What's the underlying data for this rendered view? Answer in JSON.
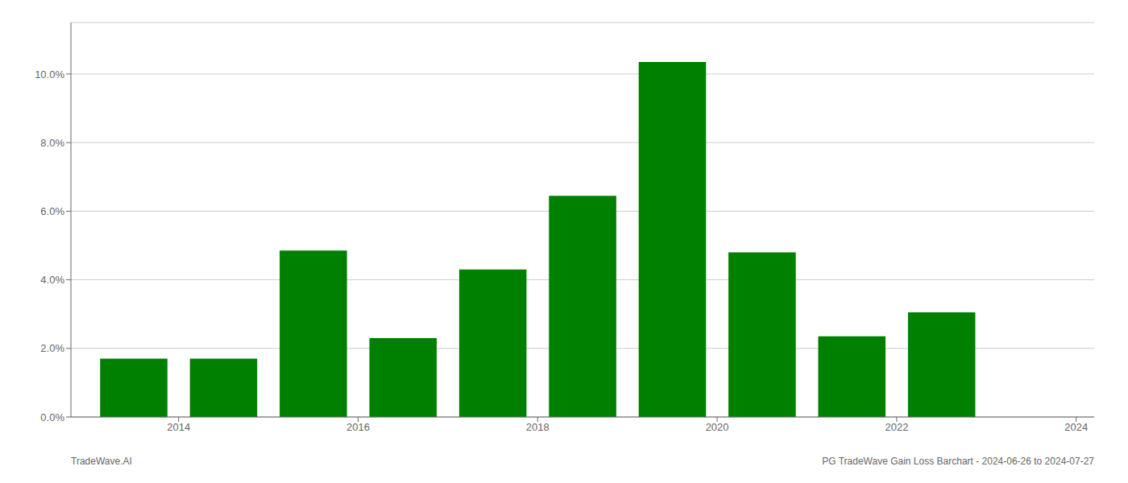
{
  "chart_data": {
    "type": "bar",
    "title": "PG TradeWave Gain Loss Barchart - 2024-06-26 to 2024-07-27",
    "annotations": [
      "TradeWave.AI"
    ],
    "x": [
      2014,
      2015,
      2016,
      2017,
      2018,
      2019,
      2020,
      2021,
      2022,
      2023
    ],
    "values": [
      0.017,
      0.017,
      0.0485,
      0.023,
      0.043,
      0.0645,
      0.1035,
      0.048,
      0.0235,
      0.0305
    ],
    "color": "#008000",
    "xlim": [
      2013.3,
      2024.7
    ],
    "xticks": [
      {
        "value": 2014.5,
        "label": "2014"
      },
      {
        "value": 2016.5,
        "label": "2016"
      },
      {
        "value": 2018.5,
        "label": "2018"
      },
      {
        "value": 2020.5,
        "label": "2020"
      },
      {
        "value": 2022.5,
        "label": "2022"
      },
      {
        "value": 2024.5,
        "label": "2024"
      }
    ],
    "ylim": [
      0.0,
      0.115
    ],
    "yticks": [
      {
        "value": 0.0,
        "label": "0.0%"
      },
      {
        "value": 0.02,
        "label": "2.0%"
      },
      {
        "value": 0.04,
        "label": "4.0%"
      },
      {
        "value": 0.06,
        "label": "6.0%"
      },
      {
        "value": 0.08,
        "label": "8.0%"
      },
      {
        "value": 0.1,
        "label": "10.0%"
      }
    ],
    "grid": true
  }
}
